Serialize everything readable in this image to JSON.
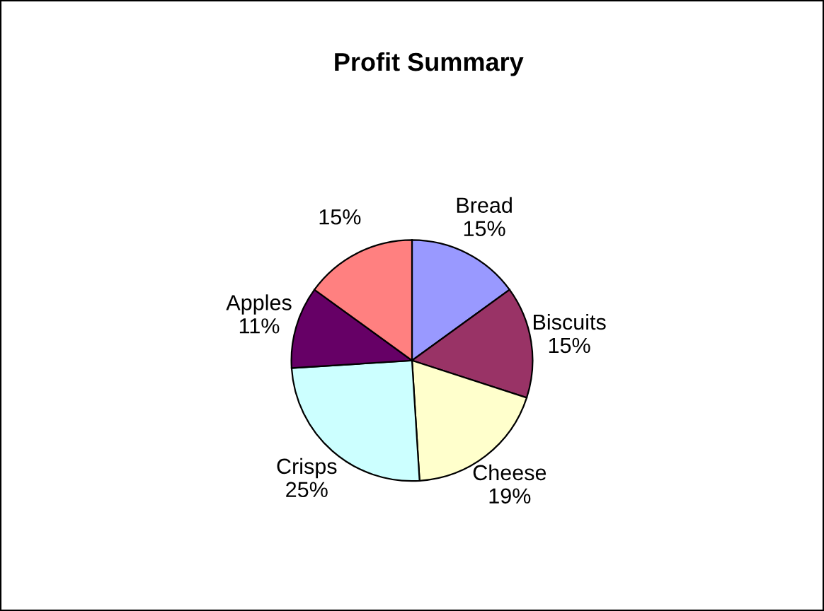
{
  "chart_data": {
    "type": "pie",
    "title": "Profit Summary",
    "categories": [
      "Bread",
      "Biscuits",
      "Cheese",
      "Crisps",
      "Apples",
      null
    ],
    "values": [
      15,
      15,
      19,
      25,
      11,
      15
    ],
    "value_labels": [
      "15%",
      "15%",
      "19%",
      "25%",
      "11%",
      "15%"
    ],
    "colors": [
      "#9999ff",
      "#993366",
      "#ffffcc",
      "#ccffff",
      "#660066",
      "#ff8080"
    ],
    "legend": false
  }
}
